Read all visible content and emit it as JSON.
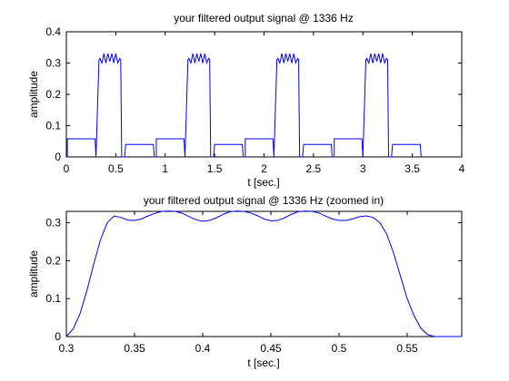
{
  "chart_data": [
    {
      "type": "line",
      "title": "your filtered output signal @ 1336 Hz",
      "xlabel": "t [sec.]",
      "ylabel": "amplitude",
      "xlim": [
        0,
        4
      ],
      "ylim": [
        0,
        0.4
      ],
      "xticks": [
        0,
        0.5,
        1,
        1.5,
        2,
        2.5,
        3,
        3.5,
        4
      ],
      "yticks": [
        0,
        0.1,
        0.2,
        0.3,
        0.4
      ],
      "xtick_labels": [
        "0",
        "0.5",
        "1",
        "1.5",
        "2",
        "2.5",
        "3",
        "3.5",
        "4"
      ],
      "ytick_labels": [
        "0",
        "0.1",
        "0.2",
        "0.3",
        "0.4"
      ],
      "grid": false,
      "line_color": "#0000ff",
      "series": [
        {
          "x": [
            0.0,
            0.01,
            0.01,
            0.29,
            0.3,
            0.33,
            0.34,
            0.36,
            0.38,
            0.4,
            0.42,
            0.44,
            0.46,
            0.48,
            0.5,
            0.52,
            0.54,
            0.55,
            0.56,
            0.59,
            0.6,
            0.62,
            0.62,
            0.88,
            0.89,
            0.91,
            0.91,
            1.19,
            1.2,
            1.23,
            1.24,
            1.26,
            1.28,
            1.3,
            1.32,
            1.34,
            1.36,
            1.38,
            1.4,
            1.42,
            1.44,
            1.45,
            1.46,
            1.49,
            1.5,
            1.52,
            1.52,
            1.78,
            1.79,
            1.81,
            1.81,
            2.09,
            2.1,
            2.13,
            2.14,
            2.16,
            2.18,
            2.2,
            2.22,
            2.24,
            2.26,
            2.28,
            2.3,
            2.32,
            2.34,
            2.35,
            2.36,
            2.39,
            2.4,
            2.42,
            2.42,
            2.68,
            2.69,
            2.71,
            2.71,
            2.99,
            3.0,
            3.03,
            3.04,
            3.06,
            3.08,
            3.1,
            3.12,
            3.14,
            3.16,
            3.18,
            3.2,
            3.22,
            3.24,
            3.25,
            3.26,
            3.29,
            3.3,
            3.32,
            3.32,
            3.58,
            3.59,
            3.59
          ],
          "y": [
            0.0,
            0.0,
            0.058,
            0.058,
            0.0,
            0.31,
            0.315,
            0.3,
            0.33,
            0.3,
            0.33,
            0.305,
            0.33,
            0.3,
            0.33,
            0.3,
            0.315,
            0.31,
            0.0,
            0.0,
            0.04,
            0.04,
            0.04,
            0.04,
            0.0,
            0.0,
            0.058,
            0.058,
            0.0,
            0.31,
            0.315,
            0.3,
            0.33,
            0.3,
            0.33,
            0.305,
            0.33,
            0.3,
            0.33,
            0.3,
            0.315,
            0.31,
            0.0,
            0.0,
            0.04,
            0.04,
            0.04,
            0.04,
            0.0,
            0.0,
            0.058,
            0.058,
            0.0,
            0.31,
            0.315,
            0.3,
            0.33,
            0.3,
            0.33,
            0.305,
            0.33,
            0.3,
            0.33,
            0.3,
            0.315,
            0.31,
            0.0,
            0.0,
            0.04,
            0.04,
            0.04,
            0.04,
            0.0,
            0.0,
            0.058,
            0.058,
            0.0,
            0.31,
            0.315,
            0.3,
            0.33,
            0.3,
            0.33,
            0.305,
            0.33,
            0.3,
            0.33,
            0.3,
            0.315,
            0.31,
            0.0,
            0.0,
            0.04,
            0.04,
            0.04,
            0.04,
            0.0,
            0.0
          ]
        }
      ]
    },
    {
      "type": "line",
      "title": "your filtered output signal @ 1336 Hz (zoomed in)",
      "xlabel": "t [sec.]",
      "ylabel": "amplitude",
      "xlim": [
        0.3,
        0.59
      ],
      "ylim": [
        0,
        0.33
      ],
      "xticks": [
        0.3,
        0.35,
        0.4,
        0.45,
        0.5,
        0.55
      ],
      "yticks": [
        0,
        0.1,
        0.2,
        0.3
      ],
      "xtick_labels": [
        "0.3",
        "0.35",
        "0.4",
        "0.45",
        "0.5",
        "0.55"
      ],
      "ytick_labels": [
        "0",
        "0.1",
        "0.2",
        "0.3"
      ],
      "grid": false,
      "line_color": "#0000ff",
      "series": [
        {
          "x": [
            0.3,
            0.305,
            0.31,
            0.315,
            0.32,
            0.325,
            0.33,
            0.335,
            0.34,
            0.345,
            0.35,
            0.355,
            0.36,
            0.365,
            0.37,
            0.375,
            0.38,
            0.385,
            0.39,
            0.395,
            0.4,
            0.405,
            0.41,
            0.415,
            0.42,
            0.425,
            0.43,
            0.435,
            0.44,
            0.445,
            0.45,
            0.455,
            0.46,
            0.465,
            0.47,
            0.475,
            0.48,
            0.485,
            0.49,
            0.495,
            0.5,
            0.505,
            0.51,
            0.515,
            0.52,
            0.525,
            0.53,
            0.535,
            0.54,
            0.545,
            0.55,
            0.555,
            0.56,
            0.565,
            0.57,
            0.575,
            0.58,
            0.585,
            0.59
          ],
          "y": [
            0.0,
            0.02,
            0.06,
            0.12,
            0.19,
            0.255,
            0.3,
            0.318,
            0.314,
            0.307,
            0.306,
            0.31,
            0.318,
            0.325,
            0.33,
            0.331,
            0.33,
            0.325,
            0.316,
            0.308,
            0.304,
            0.306,
            0.313,
            0.322,
            0.329,
            0.331,
            0.33,
            0.326,
            0.319,
            0.31,
            0.305,
            0.306,
            0.313,
            0.322,
            0.329,
            0.331,
            0.33,
            0.326,
            0.318,
            0.31,
            0.306,
            0.306,
            0.31,
            0.316,
            0.318,
            0.314,
            0.3,
            0.27,
            0.22,
            0.16,
            0.1,
            0.055,
            0.022,
            0.005,
            0.0,
            0.0,
            0.0,
            0.0,
            0.0
          ]
        }
      ]
    }
  ]
}
